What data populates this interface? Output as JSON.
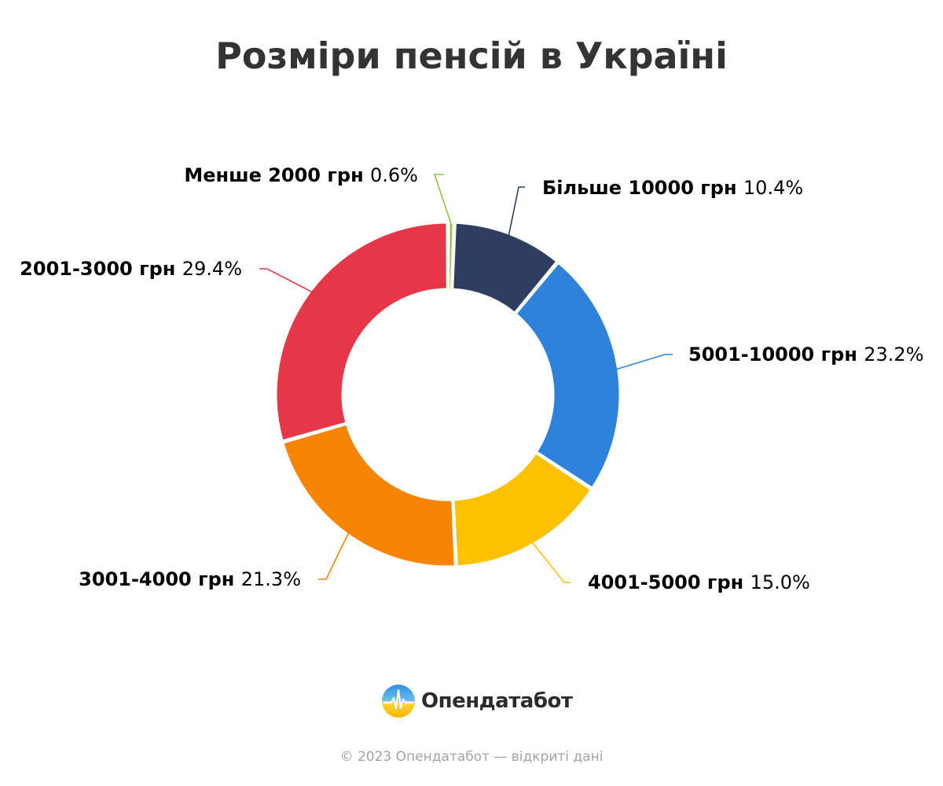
{
  "chart_data": {
    "type": "pie",
    "title": "Розміри пенсій в Україні",
    "categories": [
      "Менше 2000 грн",
      "Більше 10000 грн",
      "5001-10000 грн",
      "4001-5000 грн",
      "3001-4000 грн",
      "2001-3000 грн"
    ],
    "values": [
      0.6,
      10.4,
      23.2,
      15.0,
      21.3,
      29.4
    ],
    "value_labels": [
      "0.6%",
      "10.4%",
      "23.2%",
      "15.0%",
      "21.3%",
      "29.4%"
    ],
    "colors": [
      "#8cc63f",
      "#2f3e5e",
      "#2e82db",
      "#fcc200",
      "#f88404",
      "#e63748"
    ],
    "donut": true,
    "legend": "none"
  },
  "brand": {
    "name": "Опендатабот",
    "logo_icon": "opendatabot-logo-icon"
  },
  "footer": {
    "text": "© 2023 Опендатабот — відкриті дані"
  }
}
